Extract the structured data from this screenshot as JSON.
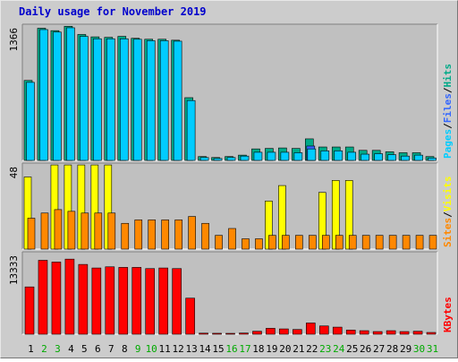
{
  "chart_data": {
    "type": "bar",
    "title": "Daily usage for November 2019",
    "days": [
      "1",
      "2",
      "3",
      "4",
      "5",
      "6",
      "7",
      "8",
      "9",
      "10",
      "11",
      "12",
      "13",
      "14",
      "15",
      "16",
      "17",
      "18",
      "19",
      "20",
      "21",
      "22",
      "23",
      "24",
      "25",
      "26",
      "27",
      "28",
      "29",
      "30",
      "31"
    ],
    "weekend_days": [
      "2",
      "3",
      "9",
      "10",
      "16",
      "17",
      "23",
      "24",
      "30",
      "31"
    ],
    "panels": [
      {
        "id": "hits",
        "ylabel_max": "1366",
        "ymax": 1366,
        "series": [
          {
            "name": "Pages",
            "color": "#00ccff",
            "values": [
              815,
              1366,
              1340,
              1385,
              1295,
              1270,
              1270,
              1270,
              1265,
              1250,
              1250,
              1245,
              625,
              30,
              20,
              30,
              45,
              85,
              85,
              85,
              80,
              120,
              100,
              100,
              85,
              65,
              70,
              60,
              45,
              55,
              25
            ]
          },
          {
            "name": "Files",
            "color": "#3366ff",
            "values": [
              0,
              0,
              0,
              0,
              0,
              0,
              0,
              0,
              0,
              0,
              0,
              0,
              0,
              0,
              0,
              0,
              0,
              0,
              0,
              0,
              0,
              150,
              0,
              0,
              0,
              0,
              0,
              0,
              0,
              0,
              0
            ]
          },
          {
            "name": "Hits",
            "color": "#00aa88",
            "values": [
              835,
              1380,
              1355,
              1400,
              1315,
              1290,
              1285,
              1295,
              1275,
              1265,
              1265,
              1255,
              655,
              40,
              30,
              40,
              55,
              120,
              125,
              130,
              125,
              225,
              140,
              140,
              140,
              105,
              105,
              90,
              80,
              80,
              40
            ]
          }
        ],
        "legend": [
          "Pages",
          "Files",
          "Hits"
        ]
      },
      {
        "id": "visits",
        "ylabel_max": "48",
        "ymax": 48,
        "series": [
          {
            "name": "Visits",
            "color": "#ffff00",
            "values": [
              42,
              0,
              49,
              49,
              49,
              49,
              49,
              0,
              0,
              0,
              0,
              0,
              0,
              0,
              0,
              0,
              0,
              0,
              28,
              37,
              0,
              0,
              33,
              40,
              40,
              0,
              0,
              0,
              0,
              0,
              0
            ]
          },
          {
            "name": "Sites",
            "color": "#ff8800",
            "values": [
              18,
              21,
              23,
              22,
              21,
              21,
              21,
              15,
              17,
              17,
              17,
              17,
              19,
              15,
              8,
              12,
              6,
              6,
              8,
              8,
              8,
              8,
              8,
              8,
              8,
              8,
              8,
              8,
              8,
              8,
              8
            ]
          }
        ],
        "legend": [
          "Sites",
          "Visits"
        ]
      },
      {
        "id": "kbytes",
        "ylabel_max": "13333",
        "ymax": 13333,
        "series": [
          {
            "name": "KBytes",
            "color": "#ff0000",
            "values": [
              8000,
              12500,
              12200,
              12700,
              11800,
              11200,
              11400,
              11300,
              11300,
              11100,
              11200,
              11100,
              6100,
              180,
              160,
              150,
              200,
              500,
              1000,
              900,
              800,
              1900,
              1400,
              1200,
              700,
              600,
              450,
              600,
              450,
              500,
              300
            ]
          }
        ],
        "legend": [
          "KBytes"
        ]
      }
    ],
    "legend_colors": {
      "Pages": "#00ccff",
      "Files": "#3366ff",
      "Hits": "#00aa88",
      "Sites": "#ff8800",
      "Visits": "#ffff00",
      "KBytes": "#ff0000"
    },
    "colors": {
      "background": "#cccccc",
      "plot": "#c0c0c0",
      "title": "#0000cc",
      "weekday_label": "#000000",
      "weekend_label": "#00aa00"
    }
  }
}
